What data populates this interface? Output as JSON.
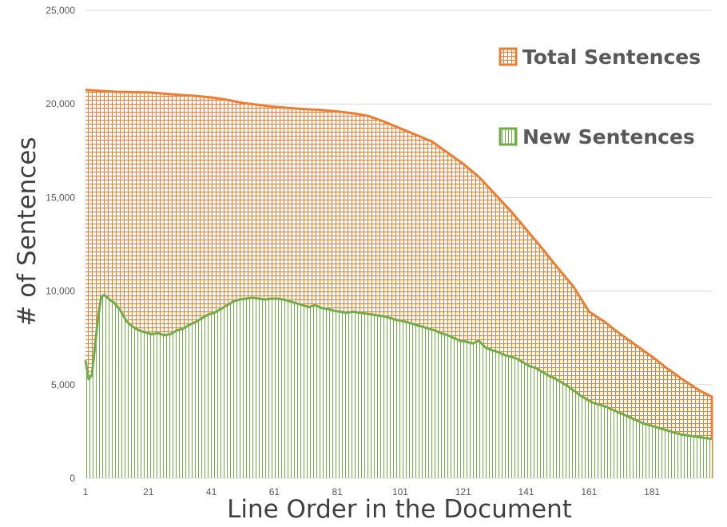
{
  "chart_data": {
    "type": "area",
    "title": "",
    "xlabel": "Line Order in the Document",
    "ylabel": "# of Sentences",
    "xlim": [
      1,
      200
    ],
    "ylim": [
      0,
      25000
    ],
    "x_tick_labels": [
      "1",
      "21",
      "41",
      "61",
      "81",
      "101",
      "121",
      "141",
      "161",
      "181"
    ],
    "x_tick_values": [
      1,
      21,
      41,
      61,
      81,
      101,
      121,
      141,
      161,
      181
    ],
    "y_tick_labels": [
      "0",
      "5,000",
      "10,000",
      "15,000",
      "20,000",
      "25,000"
    ],
    "y_tick_values": [
      0,
      5000,
      10000,
      15000,
      20000,
      25000
    ],
    "grid": "horizontal",
    "legend_position": "top-right",
    "colors": {
      "total": "#ED7D31",
      "new": "#70AD47"
    },
    "series": [
      {
        "name": "Total Sentences",
        "pattern": "grid",
        "points": [
          [
            1,
            20750
          ],
          [
            6,
            20700
          ],
          [
            11,
            20650
          ],
          [
            21,
            20620
          ],
          [
            26,
            20550
          ],
          [
            31,
            20480
          ],
          [
            36,
            20430
          ],
          [
            41,
            20350
          ],
          [
            46,
            20220
          ],
          [
            51,
            20050
          ],
          [
            56,
            19950
          ],
          [
            61,
            19850
          ],
          [
            66,
            19780
          ],
          [
            71,
            19720
          ],
          [
            76,
            19680
          ],
          [
            81,
            19600
          ],
          [
            86,
            19500
          ],
          [
            91,
            19350
          ],
          [
            96,
            19050
          ],
          [
            101,
            18700
          ],
          [
            106,
            18350
          ],
          [
            111,
            18000
          ],
          [
            116,
            17400
          ],
          [
            121,
            16800
          ],
          [
            126,
            16100
          ],
          [
            131,
            15200
          ],
          [
            136,
            14300
          ],
          [
            141,
            13300
          ],
          [
            146,
            12300
          ],
          [
            151,
            11250
          ],
          [
            156,
            10250
          ],
          [
            161,
            8900
          ],
          [
            166,
            8350
          ],
          [
            171,
            7700
          ],
          [
            176,
            7100
          ],
          [
            181,
            6500
          ],
          [
            186,
            5850
          ],
          [
            191,
            5250
          ],
          [
            196,
            4700
          ],
          [
            200,
            4350
          ]
        ]
      },
      {
        "name": "New Sentences",
        "pattern": "vertical",
        "points": [
          [
            1,
            6300
          ],
          [
            2,
            5300
          ],
          [
            3,
            5500
          ],
          [
            4,
            7000
          ],
          [
            5,
            8600
          ],
          [
            6,
            9700
          ],
          [
            7,
            9800
          ],
          [
            8,
            9650
          ],
          [
            9,
            9500
          ],
          [
            10,
            9400
          ],
          [
            12,
            9000
          ],
          [
            14,
            8400
          ],
          [
            16,
            8100
          ],
          [
            18,
            7900
          ],
          [
            20,
            7800
          ],
          [
            22,
            7700
          ],
          [
            24,
            7750
          ],
          [
            26,
            7650
          ],
          [
            28,
            7700
          ],
          [
            30,
            7900
          ],
          [
            32,
            8000
          ],
          [
            34,
            8200
          ],
          [
            36,
            8350
          ],
          [
            38,
            8550
          ],
          [
            40,
            8750
          ],
          [
            42,
            8850
          ],
          [
            44,
            9050
          ],
          [
            46,
            9250
          ],
          [
            48,
            9450
          ],
          [
            50,
            9550
          ],
          [
            52,
            9600
          ],
          [
            54,
            9650
          ],
          [
            56,
            9600
          ],
          [
            58,
            9550
          ],
          [
            60,
            9600
          ],
          [
            62,
            9600
          ],
          [
            64,
            9550
          ],
          [
            66,
            9450
          ],
          [
            68,
            9350
          ],
          [
            70,
            9250
          ],
          [
            72,
            9150
          ],
          [
            74,
            9250
          ],
          [
            76,
            9100
          ],
          [
            78,
            9050
          ],
          [
            80,
            8950
          ],
          [
            82,
            8900
          ],
          [
            84,
            8850
          ],
          [
            86,
            8900
          ],
          [
            88,
            8850
          ],
          [
            90,
            8800
          ],
          [
            92,
            8750
          ],
          [
            94,
            8700
          ],
          [
            96,
            8650
          ],
          [
            98,
            8550
          ],
          [
            100,
            8450
          ],
          [
            102,
            8400
          ],
          [
            104,
            8300
          ],
          [
            106,
            8200
          ],
          [
            108,
            8100
          ],
          [
            110,
            8000
          ],
          [
            112,
            7900
          ],
          [
            114,
            7750
          ],
          [
            116,
            7650
          ],
          [
            118,
            7500
          ],
          [
            120,
            7350
          ],
          [
            122,
            7300
          ],
          [
            124,
            7200
          ],
          [
            126,
            7350
          ],
          [
            128,
            7000
          ],
          [
            130,
            6850
          ],
          [
            132,
            6750
          ],
          [
            134,
            6600
          ],
          [
            136,
            6500
          ],
          [
            138,
            6400
          ],
          [
            140,
            6200
          ],
          [
            142,
            6000
          ],
          [
            144,
            5900
          ],
          [
            146,
            5700
          ],
          [
            148,
            5500
          ],
          [
            150,
            5350
          ],
          [
            152,
            5150
          ],
          [
            154,
            4950
          ],
          [
            156,
            4700
          ],
          [
            158,
            4450
          ],
          [
            160,
            4250
          ],
          [
            162,
            4050
          ],
          [
            164,
            3950
          ],
          [
            166,
            3850
          ],
          [
            168,
            3700
          ],
          [
            170,
            3550
          ],
          [
            172,
            3400
          ],
          [
            174,
            3250
          ],
          [
            176,
            3100
          ],
          [
            178,
            2950
          ],
          [
            180,
            2850
          ],
          [
            182,
            2750
          ],
          [
            184,
            2650
          ],
          [
            186,
            2550
          ],
          [
            188,
            2450
          ],
          [
            190,
            2350
          ],
          [
            192,
            2300
          ],
          [
            194,
            2250
          ],
          [
            196,
            2200
          ],
          [
            198,
            2150
          ],
          [
            200,
            2100
          ]
        ]
      }
    ]
  }
}
